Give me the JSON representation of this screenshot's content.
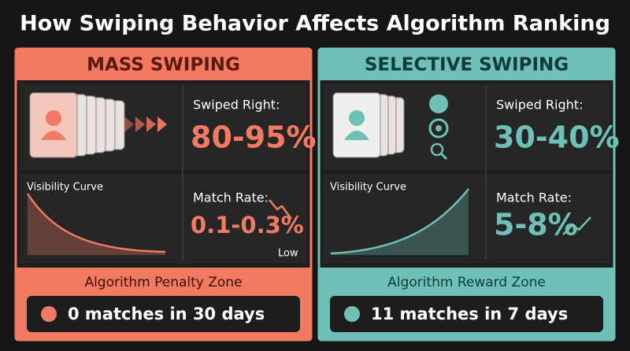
{
  "title": "How Swiping Behavior Affects Algorithm Ranking",
  "panels": [
    {
      "heading": "MASS SWIPING",
      "color": "#f27a62",
      "swiped_label": "Swiped Right:",
      "swiped_value": "80-95%",
      "curve_label": "Visibility Curve",
      "match_label": "Match Rate:",
      "match_value": "0.1-0.3%",
      "match_note": "Low",
      "zone": "Algorithm Penalty Zone",
      "result": "0 matches in 30 days",
      "trend": "down"
    },
    {
      "heading": "SELECTIVE SWIPING",
      "color": "#6fc0b6",
      "swiped_label": "Swiped Right:",
      "swiped_value": "30-40%",
      "curve_label": "Visibility Curve",
      "match_label": "Match Rate:",
      "match_value": "5-8%",
      "zone": "Algorithm Reward Zone",
      "result": "11 matches in 7 days",
      "trend": "up"
    }
  ]
}
